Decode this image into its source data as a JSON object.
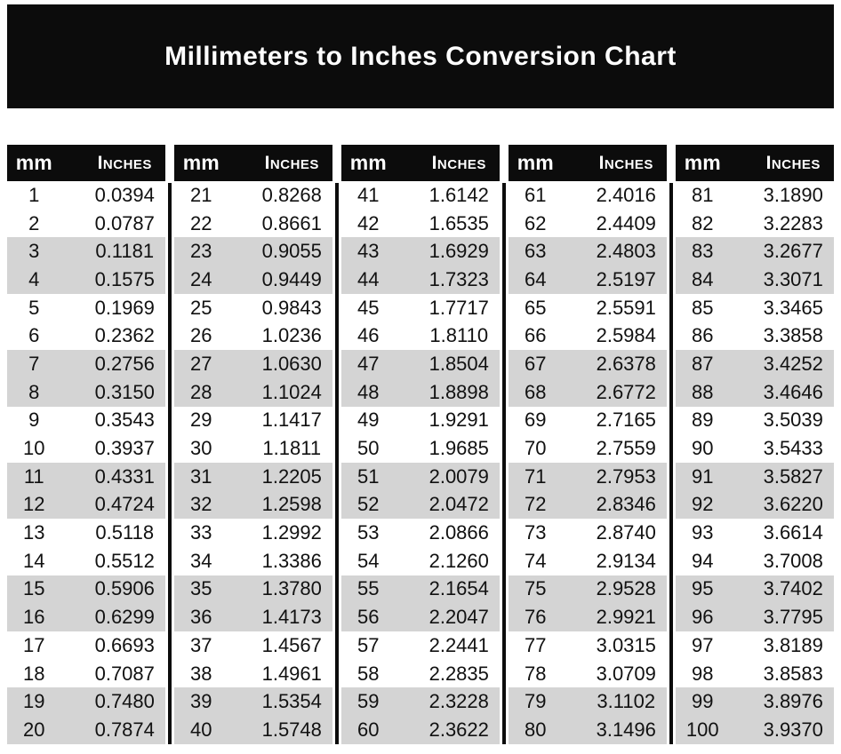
{
  "title": "Millimeters to Inches Conversion Chart",
  "colors": {
    "banner_bg": "#0c0c0c",
    "header_bg": "#0c0c0c",
    "stripe_gray": "#d4d4d4",
    "title_text": "#ffffff",
    "body_text": "#111111",
    "separator": "#0c0c0c"
  },
  "table": {
    "col_headers": {
      "mm": "mm",
      "inches": "Inches"
    },
    "groups": [
      {
        "rows": [
          {
            "mm": "1",
            "in": "0.0394"
          },
          {
            "mm": "2",
            "in": "0.0787"
          },
          {
            "mm": "3",
            "in": "0.1181"
          },
          {
            "mm": "4",
            "in": "0.1575"
          },
          {
            "mm": "5",
            "in": "0.1969"
          },
          {
            "mm": "6",
            "in": "0.2362"
          },
          {
            "mm": "7",
            "in": "0.2756"
          },
          {
            "mm": "8",
            "in": "0.3150"
          },
          {
            "mm": "9",
            "in": "0.3543"
          },
          {
            "mm": "10",
            "in": "0.3937"
          },
          {
            "mm": "11",
            "in": "0.4331"
          },
          {
            "mm": "12",
            "in": "0.4724"
          },
          {
            "mm": "13",
            "in": "0.5118"
          },
          {
            "mm": "14",
            "in": "0.5512"
          },
          {
            "mm": "15",
            "in": "0.5906"
          },
          {
            "mm": "16",
            "in": "0.6299"
          },
          {
            "mm": "17",
            "in": "0.6693"
          },
          {
            "mm": "18",
            "in": "0.7087"
          },
          {
            "mm": "19",
            "in": "0.7480"
          },
          {
            "mm": "20",
            "in": "0.7874"
          }
        ]
      },
      {
        "rows": [
          {
            "mm": "21",
            "in": "0.8268"
          },
          {
            "mm": "22",
            "in": "0.8661"
          },
          {
            "mm": "23",
            "in": "0.9055"
          },
          {
            "mm": "24",
            "in": "0.9449"
          },
          {
            "mm": "25",
            "in": "0.9843"
          },
          {
            "mm": "26",
            "in": "1.0236"
          },
          {
            "mm": "27",
            "in": "1.0630"
          },
          {
            "mm": "28",
            "in": "1.1024"
          },
          {
            "mm": "29",
            "in": "1.1417"
          },
          {
            "mm": "30",
            "in": "1.1811"
          },
          {
            "mm": "31",
            "in": "1.2205"
          },
          {
            "mm": "32",
            "in": "1.2598"
          },
          {
            "mm": "33",
            "in": "1.2992"
          },
          {
            "mm": "34",
            "in": "1.3386"
          },
          {
            "mm": "35",
            "in": "1.3780"
          },
          {
            "mm": "36",
            "in": "1.4173"
          },
          {
            "mm": "37",
            "in": "1.4567"
          },
          {
            "mm": "38",
            "in": "1.4961"
          },
          {
            "mm": "39",
            "in": "1.5354"
          },
          {
            "mm": "40",
            "in": "1.5748"
          }
        ]
      },
      {
        "rows": [
          {
            "mm": "41",
            "in": "1.6142"
          },
          {
            "mm": "42",
            "in": "1.6535"
          },
          {
            "mm": "43",
            "in": "1.6929"
          },
          {
            "mm": "44",
            "in": "1.7323"
          },
          {
            "mm": "45",
            "in": "1.7717"
          },
          {
            "mm": "46",
            "in": "1.8110"
          },
          {
            "mm": "47",
            "in": "1.8504"
          },
          {
            "mm": "48",
            "in": "1.8898"
          },
          {
            "mm": "49",
            "in": "1.9291"
          },
          {
            "mm": "50",
            "in": "1.9685"
          },
          {
            "mm": "51",
            "in": "2.0079"
          },
          {
            "mm": "52",
            "in": "2.0472"
          },
          {
            "mm": "53",
            "in": "2.0866"
          },
          {
            "mm": "54",
            "in": "2.1260"
          },
          {
            "mm": "55",
            "in": "2.1654"
          },
          {
            "mm": "56",
            "in": "2.2047"
          },
          {
            "mm": "57",
            "in": "2.2441"
          },
          {
            "mm": "58",
            "in": "2.2835"
          },
          {
            "mm": "59",
            "in": "2.3228"
          },
          {
            "mm": "60",
            "in": "2.3622"
          }
        ]
      },
      {
        "rows": [
          {
            "mm": "61",
            "in": "2.4016"
          },
          {
            "mm": "62",
            "in": "2.4409"
          },
          {
            "mm": "63",
            "in": "2.4803"
          },
          {
            "mm": "64",
            "in": "2.5197"
          },
          {
            "mm": "65",
            "in": "2.5591"
          },
          {
            "mm": "66",
            "in": "2.5984"
          },
          {
            "mm": "67",
            "in": "2.6378"
          },
          {
            "mm": "68",
            "in": "2.6772"
          },
          {
            "mm": "69",
            "in": "2.7165"
          },
          {
            "mm": "70",
            "in": "2.7559"
          },
          {
            "mm": "71",
            "in": "2.7953"
          },
          {
            "mm": "72",
            "in": "2.8346"
          },
          {
            "mm": "73",
            "in": "2.8740"
          },
          {
            "mm": "74",
            "in": "2.9134"
          },
          {
            "mm": "75",
            "in": "2.9528"
          },
          {
            "mm": "76",
            "in": "2.9921"
          },
          {
            "mm": "77",
            "in": "3.0315"
          },
          {
            "mm": "78",
            "in": "3.0709"
          },
          {
            "mm": "79",
            "in": "3.1102"
          },
          {
            "mm": "80",
            "in": "3.1496"
          }
        ]
      },
      {
        "rows": [
          {
            "mm": "81",
            "in": "3.1890"
          },
          {
            "mm": "82",
            "in": "3.2283"
          },
          {
            "mm": "83",
            "in": "3.2677"
          },
          {
            "mm": "84",
            "in": "3.3071"
          },
          {
            "mm": "85",
            "in": "3.3465"
          },
          {
            "mm": "86",
            "in": "3.3858"
          },
          {
            "mm": "87",
            "in": "3.4252"
          },
          {
            "mm": "88",
            "in": "3.4646"
          },
          {
            "mm": "89",
            "in": "3.5039"
          },
          {
            "mm": "90",
            "in": "3.5433"
          },
          {
            "mm": "91",
            "in": "3.5827"
          },
          {
            "mm": "92",
            "in": "3.6220"
          },
          {
            "mm": "93",
            "in": "3.6614"
          },
          {
            "mm": "94",
            "in": "3.7008"
          },
          {
            "mm": "95",
            "in": "3.7402"
          },
          {
            "mm": "96",
            "in": "3.7795"
          },
          {
            "mm": "97",
            "in": "3.8189"
          },
          {
            "mm": "98",
            "in": "3.8583"
          },
          {
            "mm": "99",
            "in": "3.8976"
          },
          {
            "mm": "100",
            "in": "3.9370"
          }
        ]
      }
    ]
  }
}
